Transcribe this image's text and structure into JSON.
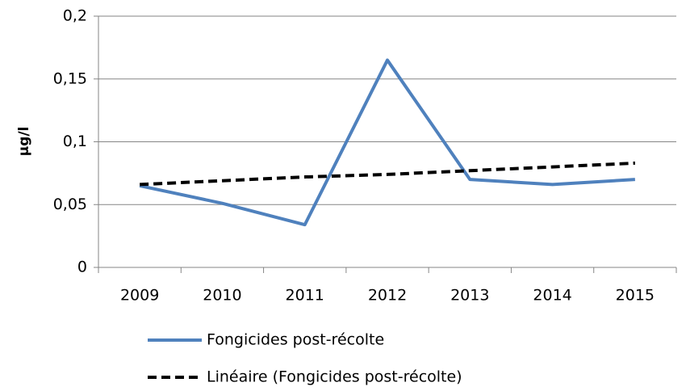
{
  "chart_data": {
    "type": "line",
    "ylabel": "µg/l",
    "categories": [
      "2009",
      "2010",
      "2011",
      "2012",
      "2013",
      "2014",
      "2015"
    ],
    "series": [
      {
        "name": "Fongicides post-récolte",
        "color": "#4f81bd",
        "dashed": false,
        "values": [
          0.065,
          0.051,
          0.034,
          0.165,
          0.07,
          0.066,
          0.07
        ]
      },
      {
        "name": "Linéaire (Fongicides post-récolte)",
        "color": "#000000",
        "dashed": true,
        "values": [
          0.066,
          0.069,
          0.072,
          0.074,
          0.077,
          0.08,
          0.083
        ]
      }
    ],
    "ylim": [
      0,
      0.2
    ],
    "yticks": [
      0,
      {
        "value": 0.05,
        "label": "0,05"
      },
      {
        "value": 0.1,
        "label": "0,1"
      },
      {
        "value": 0.15,
        "label": "0,15"
      },
      {
        "value": 0.2,
        "label": "0,2"
      }
    ],
    "grid": true,
    "legend": "bottom"
  }
}
